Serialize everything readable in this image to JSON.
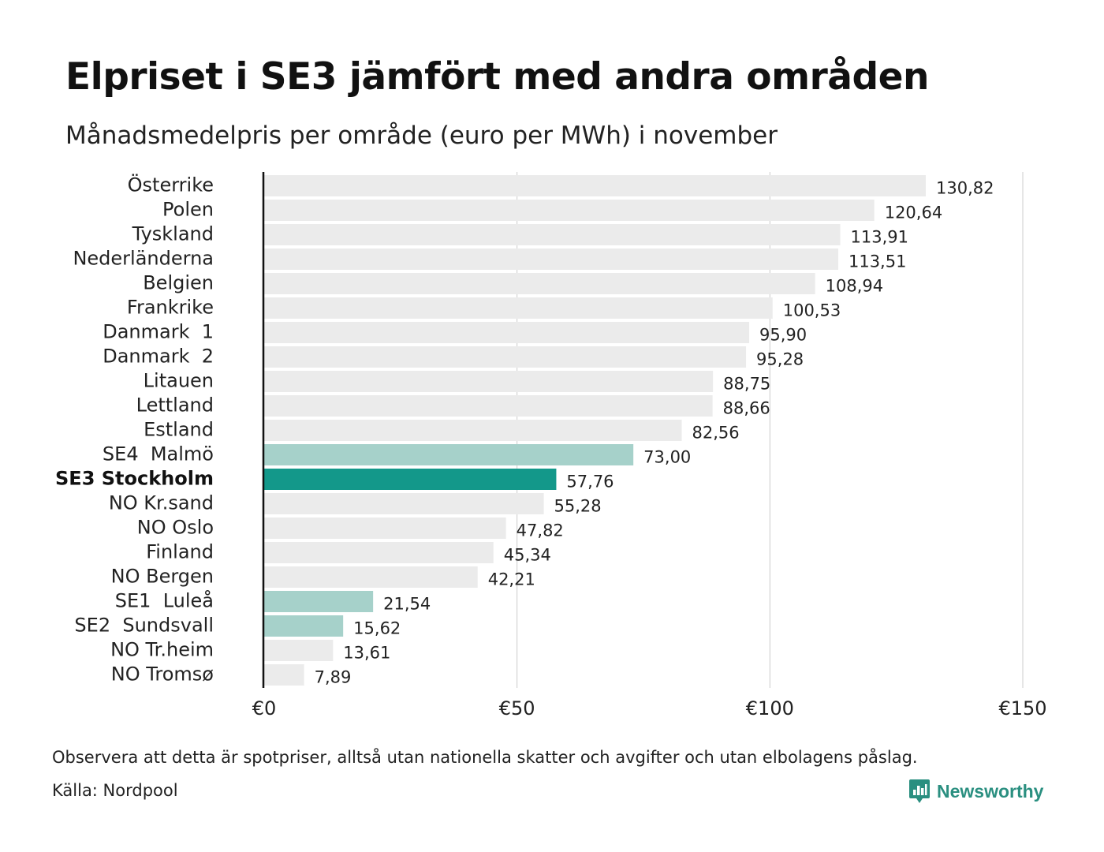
{
  "title": "Elpriset i SE3 jämfört med andra områden",
  "subtitle": "Månadsmedelpris per område (euro per MWh) i november",
  "note": "Observera att detta är spotpriser, alltså utan nationella skatter och avgifter och utan elbolagens påslag.",
  "source": "Källa: Nordpool",
  "brand": {
    "name": "Newsworthy",
    "icon": "newsworthy-logo-icon"
  },
  "colors": {
    "default_bar": "#ebebeb",
    "swedish_zone_bar": "#a6d1ca",
    "highlight_bar": "#13988a",
    "axis_line": "#111111",
    "grid_line": "#cccccc",
    "brand": "#2a8f80"
  },
  "chart_data": {
    "type": "bar",
    "orientation": "horizontal",
    "categories": [
      "Österrike",
      "Polen",
      "Tyskland",
      "Nederländerna",
      "Belgien",
      "Frankrike",
      "Danmark  1",
      "Danmark  2",
      "Litauen",
      "Lettland",
      "Estland",
      "SE4  Malmö",
      "SE3 Stockholm",
      "NO Kr.sand",
      "NO Oslo",
      "Finland",
      "NO Bergen",
      "SE1  Luleå",
      "SE2  Sundsvall",
      "NO Tr.heim",
      "NO Tromsø"
    ],
    "values": [
      130.82,
      120.64,
      113.91,
      113.51,
      108.94,
      100.53,
      95.9,
      95.28,
      88.75,
      88.66,
      82.56,
      73.0,
      57.76,
      55.28,
      47.82,
      45.34,
      42.21,
      21.54,
      15.62,
      13.61,
      7.89
    ],
    "value_labels": [
      "130,82",
      "120,64",
      "113,91",
      "113,51",
      "108,94",
      "100,53",
      "95,90",
      "95,28",
      "88,75",
      "88,66",
      "82,56",
      "73,00",
      "57,76",
      "55,28",
      "47,82",
      "45,34",
      "42,21",
      "21,54",
      "15,62",
      "13,61",
      "7,89"
    ],
    "bar_style": [
      "default",
      "default",
      "default",
      "default",
      "default",
      "default",
      "default",
      "default",
      "default",
      "default",
      "default",
      "swedish_zone",
      "highlight",
      "default",
      "default",
      "default",
      "default",
      "swedish_zone",
      "swedish_zone",
      "default",
      "default"
    ],
    "highlight_category": "SE3 Stockholm",
    "xlim": [
      0,
      150
    ],
    "xticks": [
      0,
      50,
      100,
      150
    ],
    "xtick_labels": [
      "€0",
      "€50",
      "€100",
      "€150"
    ],
    "grid": "vertical",
    "xlabel": "",
    "ylabel": ""
  }
}
